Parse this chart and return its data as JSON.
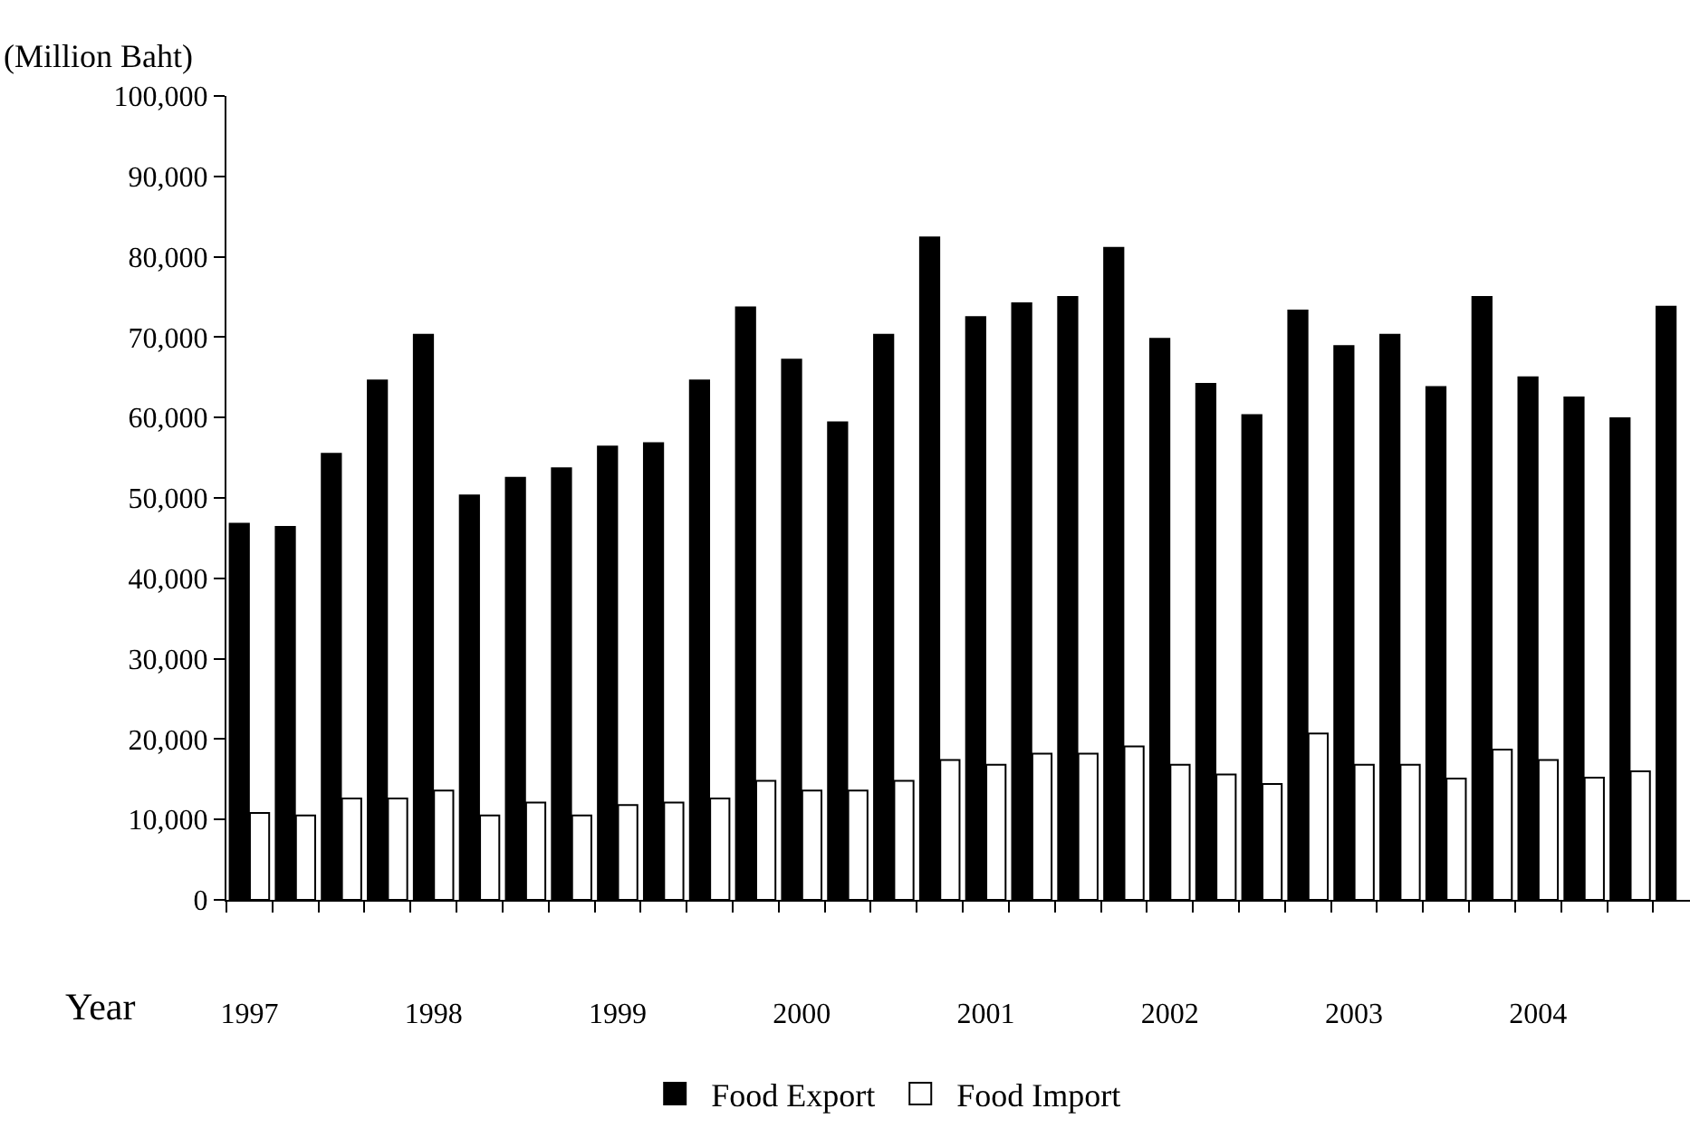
{
  "chart_data": {
    "type": "bar",
    "ylabel": "(Million Baht)",
    "xlabel": "Year",
    "categories": [
      "1997",
      null,
      null,
      null,
      "1998",
      null,
      null,
      null,
      "1999",
      null,
      null,
      null,
      "2000",
      null,
      null,
      null,
      "2001",
      null,
      null,
      null,
      "2002",
      null,
      null,
      null,
      "2003",
      null,
      null,
      null,
      "2004",
      null,
      null,
      null
    ],
    "series": [
      {
        "name": "Food Export",
        "color": "#000000",
        "values": [
          46800,
          46400,
          55500,
          64600,
          70300,
          50300,
          52500,
          53700,
          56400,
          56800,
          64600,
          73700,
          67200,
          59400,
          70300,
          82400,
          72500,
          74200,
          75000,
          81100,
          69800,
          64200,
          60300,
          73300,
          68900,
          70300,
          63800,
          75000,
          65000,
          62500,
          59900,
          73800
        ]
      },
      {
        "name": "Food Import",
        "color": "#ffffff",
        "values": [
          10800,
          10500,
          12600,
          12600,
          13600,
          10500,
          12100,
          10500,
          11800,
          12100,
          12600,
          14800,
          13600,
          13600,
          14800,
          17400,
          16800,
          18200,
          18200,
          19100,
          16800,
          15600,
          14400,
          20700,
          16800,
          16800,
          15100,
          18700,
          17400,
          15200,
          16000,
          null
        ]
      }
    ],
    "ylim": [
      0,
      100000
    ],
    "yticks": [
      {
        "value": 0,
        "label": "0"
      },
      {
        "value": 10000,
        "label": "10,000"
      },
      {
        "value": 20000,
        "label": "20,000"
      },
      {
        "value": 30000,
        "label": "30,000"
      },
      {
        "value": 40000,
        "label": "40,000"
      },
      {
        "value": 50000,
        "label": "50,000"
      },
      {
        "value": 60000,
        "label": "60,000"
      },
      {
        "value": 70000,
        "label": "70,000"
      },
      {
        "value": 80000,
        "label": "80,000"
      },
      {
        "value": 90000,
        "label": "90,000"
      },
      {
        "value": 100000,
        "label": "100,000"
      }
    ],
    "legend": "bottom"
  }
}
